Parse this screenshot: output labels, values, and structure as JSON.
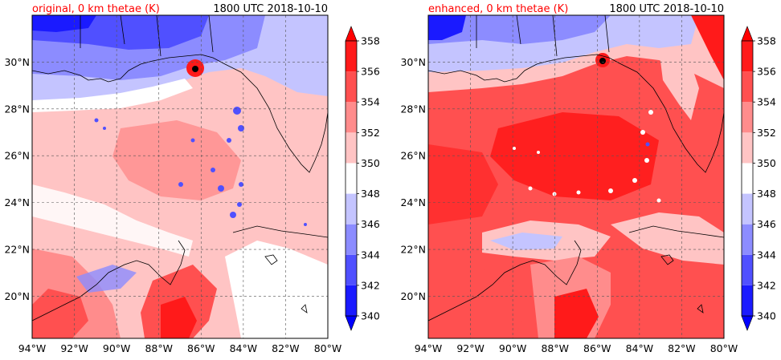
{
  "panels": [
    {
      "title_left": "original, 0 km thetae (K)",
      "title_right": "1800 UTC 2018-10-10",
      "marker": {
        "lon": -86.2,
        "lat": 29.8
      }
    },
    {
      "title_left": "enhanced, 0 km thetae (K)",
      "title_right": "1800 UTC 2018-10-10",
      "marker": {
        "lon": -85.8,
        "lat": 30.1
      }
    }
  ],
  "axes": {
    "lon_min": -94,
    "lon_max": -80,
    "lat_min": 18.2,
    "lat_max": 32.0,
    "x_ticks": [
      -94,
      -92,
      -90,
      -88,
      -86,
      -84,
      -82,
      -80
    ],
    "x_tick_labels": [
      "94°W",
      "92°W",
      "90°W",
      "88°W",
      "86°W",
      "84°W",
      "82°W",
      "80°W"
    ],
    "y_ticks": [
      20,
      22,
      24,
      26,
      28,
      30
    ],
    "y_tick_labels": [
      "20°N",
      "22°N",
      "24°N",
      "26°N",
      "28°N",
      "30°N"
    ],
    "grid": true
  },
  "colorbar": {
    "levels": [
      340,
      342,
      344,
      346,
      348,
      350,
      352,
      354,
      356,
      358
    ],
    "labels": [
      "340",
      "342",
      "344",
      "346",
      "348",
      "350",
      "352",
      "354",
      "356",
      "358"
    ],
    "colors": [
      "#1a1aff",
      "#5050ff",
      "#8c8cff",
      "#c4c4ff",
      "#ffffff",
      "#ffc4c4",
      "#ff8c8c",
      "#ff5050",
      "#ff1a1a"
    ],
    "under_color": "#0000ff",
    "over_color": "#ff0000"
  },
  "colors": {
    "title_left": "#ff0000",
    "text": "#000000",
    "land_outline": "#000000"
  }
}
